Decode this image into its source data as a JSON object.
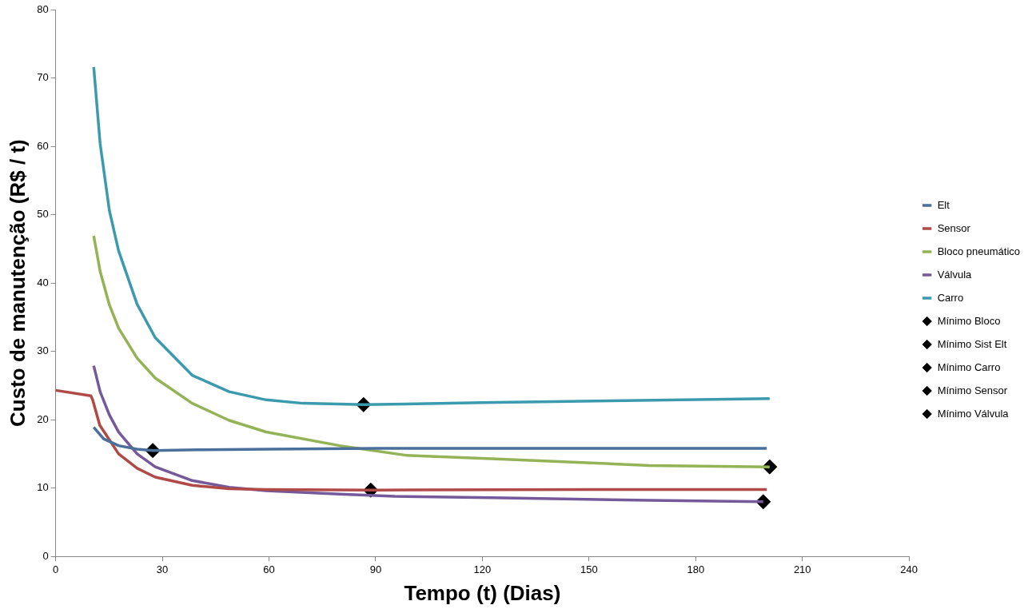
{
  "chart_data": {
    "type": "line",
    "xlabel": "Tempo (t) (Dias)",
    "ylabel": "Custo de manutenção (R$ / t)",
    "xlim": [
      0,
      240
    ],
    "xticks": [
      0,
      30,
      60,
      90,
      120,
      150,
      180,
      210,
      240
    ],
    "ylim": [
      0,
      80
    ],
    "yticks": [
      0,
      10,
      20,
      30,
      40,
      50,
      60,
      70,
      80
    ],
    "grid": false,
    "legend": "right",
    "line_style": "solid",
    "series": [
      {
        "name": "Elt",
        "color": "#4a6f9a",
        "x": [
          10.7,
          13.5,
          17.7,
          22.9,
          27.3,
          40,
          60,
          90,
          130,
          170,
          200
        ],
        "values": [
          18.9,
          17.2,
          16.2,
          15.7,
          15.5,
          15.6,
          15.7,
          15.8,
          15.8,
          15.8,
          15.8
        ]
      },
      {
        "name": "Sensor",
        "color": "#b04a47",
        "x": [
          0,
          9.9,
          10.4,
          12.4,
          17.7,
          22.9,
          28,
          38.4,
          48.8,
          59,
          90,
          150,
          200
        ],
        "values": [
          24.3,
          23.5,
          22.9,
          19.2,
          15.0,
          12.9,
          11.6,
          10.4,
          9.9,
          9.8,
          9.7,
          9.8,
          9.8
        ]
      },
      {
        "name": "Bloco pneumático",
        "color": "#93b356",
        "x": [
          10.7,
          12.5,
          15.1,
          17.7,
          22.9,
          28,
          38.4,
          48.8,
          59.2,
          79.9,
          98.5,
          122.7,
          167,
          200.8
        ],
        "values": [
          46.9,
          41.7,
          36.8,
          33.4,
          29.0,
          26.1,
          22.4,
          19.9,
          18.2,
          16.2,
          14.8,
          14.3,
          13.3,
          13.1
        ]
      },
      {
        "name": "Válvula",
        "color": "#75599a",
        "x": [
          10.7,
          12.5,
          15.1,
          17.7,
          22.9,
          28,
          38.4,
          48.8,
          59.2,
          79.9,
          95.4,
          122.8,
          167,
          199
        ],
        "values": [
          27.9,
          24.1,
          20.7,
          18.2,
          15.0,
          13.1,
          11.1,
          10.1,
          9.6,
          9.1,
          8.8,
          8.6,
          8.2,
          8.0
        ]
      },
      {
        "name": "Carro",
        "color": "#3c9aae",
        "x": [
          10.7,
          12.5,
          15.1,
          17.7,
          22.9,
          28,
          38.4,
          48.8,
          59.2,
          69.5,
          86.6,
          120,
          160,
          200.8
        ],
        "values": [
          71.6,
          60.4,
          50.6,
          44.7,
          36.9,
          32.0,
          26.5,
          24.1,
          22.9,
          22.4,
          22.2,
          22.5,
          22.8,
          23.1
        ]
      },
      {
        "name": "Mínimo Bloco",
        "type": "scatter",
        "marker": "diamond",
        "color": "#000000",
        "x": [
          200.8
        ],
        "values": [
          13.1
        ]
      },
      {
        "name": "Mínimo Sist Elt",
        "type": "scatter",
        "marker": "diamond",
        "color": "#000000",
        "x": [
          27.3
        ],
        "values": [
          15.5
        ]
      },
      {
        "name": "Mínimo Carro",
        "type": "scatter",
        "marker": "diamond",
        "color": "#000000",
        "x": [
          86.6
        ],
        "values": [
          22.2
        ]
      },
      {
        "name": "Mínimo Sensor",
        "type": "scatter",
        "marker": "diamond",
        "color": "#000000",
        "x": [
          88.6
        ],
        "values": [
          9.7
        ]
      },
      {
        "name": "Mínimo Válvula",
        "type": "scatter",
        "marker": "diamond",
        "color": "#000000",
        "x": [
          199
        ],
        "values": [
          8.0
        ]
      }
    ]
  }
}
